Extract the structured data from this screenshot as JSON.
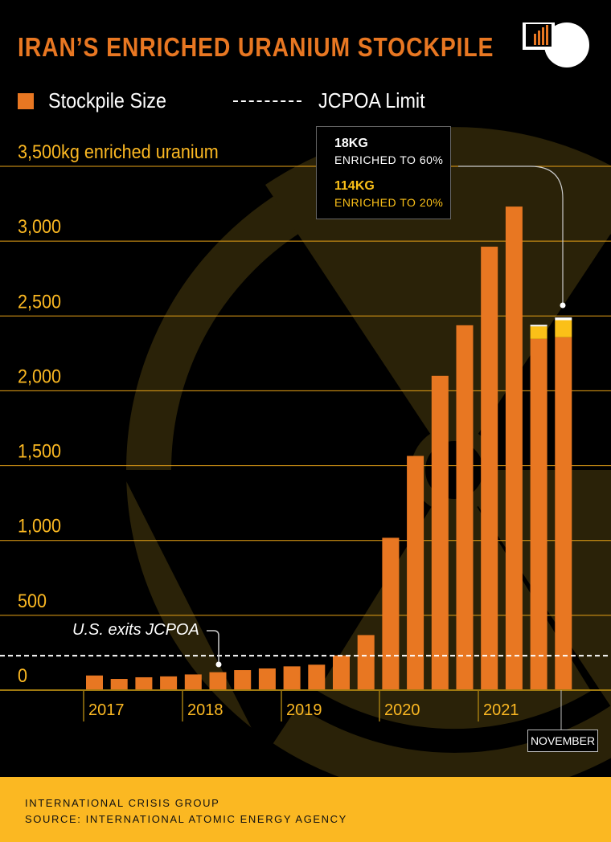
{
  "title": "IRAN’S ENRICHED URANIUM STOCKPILE",
  "legend": {
    "stockpile": "Stockpile Size",
    "limit": "JCPOA Limit"
  },
  "callout": {
    "v60": "18KG",
    "l60": "ENRICHED TO 60%",
    "v20": "114KG",
    "l20": "ENRICHED TO 20%"
  },
  "annotation": "U.S. exits JCPOA",
  "november_label": "NOVEMBER",
  "footer": {
    "line1": "INTERNATIONAL CRISIS GROUP",
    "line2": "SOURCE: INTERNATIONAL ATOMIC ENERGY AGENCY"
  },
  "colors": {
    "orange": "#e87722",
    "yellow": "#fbc018",
    "white": "#ffffff",
    "grid": "#e8a317"
  },
  "chart_data": {
    "type": "bar",
    "title": "IRAN’S ENRICHED URANIUM STOCKPILE",
    "ylabel": "kg enriched uranium",
    "ylim": [
      0,
      3500
    ],
    "yticks": [
      0,
      500,
      1000,
      1500,
      2000,
      2500,
      3000,
      3500
    ],
    "ytick_labels": [
      "0",
      "500",
      "1,000",
      "1,500",
      "2,000",
      "2,500",
      "3,000",
      "3,500kg enriched uranium"
    ],
    "x_year_labels": [
      "2017",
      "2018",
      "2019",
      "2020",
      "2021"
    ],
    "jcpoa_limit": 230,
    "series": [
      {
        "name": "Stockpile Size (low enriched)",
        "values": [
          98,
          75,
          86,
          92,
          105,
          120,
          134,
          145,
          159,
          170,
          232,
          368,
          1018,
          1565,
          2100,
          2438,
          2963,
          3231,
          2347,
          2358
        ]
      },
      {
        "name": "Enriched to 20%",
        "values": [
          0,
          0,
          0,
          0,
          0,
          0,
          0,
          0,
          0,
          0,
          0,
          0,
          0,
          0,
          0,
          0,
          0,
          0,
          84,
          114
        ]
      },
      {
        "name": "Enriched to 60%",
        "values": [
          0,
          0,
          0,
          0,
          0,
          0,
          0,
          0,
          0,
          0,
          0,
          0,
          0,
          0,
          0,
          0,
          0,
          0,
          10,
          18
        ]
      }
    ]
  }
}
